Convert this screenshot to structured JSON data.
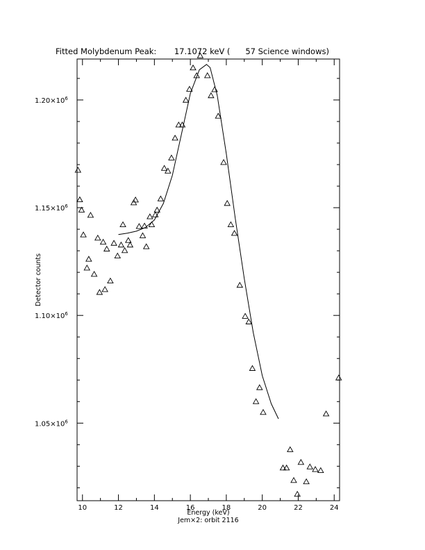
{
  "chart_data": {
    "type": "scatter",
    "title": "Fitted Molybdenum Peak:       17.1072 keV (      57 Science windows)",
    "xlabel": "Energy (keV)",
    "ylabel": "Detector counts",
    "subcaption": "Jem×2: orbit 2116",
    "xlim": [
      9.7,
      24.3
    ],
    "ylim": [
      1014000,
      1219000
    ],
    "x_ticks": [
      10,
      12,
      14,
      16,
      18,
      20,
      22,
      24
    ],
    "x_tick_labels": [
      "10",
      "12",
      "14",
      "16",
      "18",
      "20",
      "22",
      "24"
    ],
    "y_ticks": [
      1050000,
      1100000,
      1150000,
      1200000
    ],
    "y_tick_labels": [
      {
        "mant": "1.05×10",
        "exp": "6"
      },
      {
        "mant": "1.10×10",
        "exp": "6"
      },
      {
        "mant": "1.15×10",
        "exp": "6"
      },
      {
        "mant": "1.20×10",
        "exp": "6"
      }
    ],
    "grid": false,
    "series": [
      {
        "marker": "triangle",
        "points": [
          [
            9.75,
            1167400
          ],
          [
            9.85,
            1153700
          ],
          [
            9.95,
            1148900
          ],
          [
            10.05,
            1137400
          ],
          [
            10.25,
            1122000
          ],
          [
            10.35,
            1126100
          ],
          [
            10.45,
            1146500
          ],
          [
            10.65,
            1119100
          ],
          [
            10.85,
            1135900
          ],
          [
            10.95,
            1110700
          ],
          [
            11.15,
            1134000
          ],
          [
            11.25,
            1112000
          ],
          [
            11.35,
            1130800
          ],
          [
            11.55,
            1116000
          ],
          [
            11.75,
            1133500
          ],
          [
            11.95,
            1127600
          ],
          [
            12.15,
            1132700
          ],
          [
            12.25,
            1142100
          ],
          [
            12.35,
            1130100
          ],
          [
            12.55,
            1134800
          ],
          [
            12.65,
            1132700
          ],
          [
            12.85,
            1152300
          ],
          [
            12.95,
            1153600
          ],
          [
            13.15,
            1141300
          ],
          [
            13.35,
            1137000
          ],
          [
            13.45,
            1141500
          ],
          [
            13.55,
            1131900
          ],
          [
            13.75,
            1145800
          ],
          [
            13.85,
            1142100
          ],
          [
            14.05,
            1146700
          ],
          [
            14.15,
            1148900
          ],
          [
            14.35,
            1154100
          ],
          [
            14.55,
            1168300
          ],
          [
            14.75,
            1167000
          ],
          [
            14.95,
            1173100
          ],
          [
            15.15,
            1182300
          ],
          [
            15.35,
            1188400
          ],
          [
            15.55,
            1188400
          ],
          [
            15.75,
            1199900
          ],
          [
            15.95,
            1205000
          ],
          [
            16.15,
            1214900
          ],
          [
            16.35,
            1211300
          ],
          [
            16.55,
            1220500
          ],
          [
            16.95,
            1211300
          ],
          [
            17.15,
            1202000
          ],
          [
            17.35,
            1204800
          ],
          [
            17.55,
            1192500
          ],
          [
            17.85,
            1171000
          ],
          [
            18.05,
            1152000
          ],
          [
            18.25,
            1142100
          ],
          [
            18.45,
            1138100
          ],
          [
            18.75,
            1114000
          ],
          [
            19.05,
            1099600
          ],
          [
            19.25,
            1097000
          ],
          [
            19.45,
            1075400
          ],
          [
            19.65,
            1060000
          ],
          [
            19.85,
            1066500
          ],
          [
            20.05,
            1055000
          ],
          [
            21.15,
            1029200
          ],
          [
            21.35,
            1029200
          ],
          [
            21.55,
            1037700
          ],
          [
            21.75,
            1023400
          ],
          [
            21.95,
            1017000
          ],
          [
            22.15,
            1031800
          ],
          [
            22.45,
            1022800
          ],
          [
            22.65,
            1029700
          ],
          [
            22.95,
            1028500
          ],
          [
            23.25,
            1028000
          ],
          [
            23.55,
            1054300
          ],
          [
            24.25,
            1071000
          ]
        ]
      },
      {
        "name": "fit",
        "style": "line",
        "points": [
          [
            12.0,
            1137500
          ],
          [
            12.5,
            1138200
          ],
          [
            13.0,
            1139100
          ],
          [
            13.5,
            1140800
          ],
          [
            14.0,
            1144300
          ],
          [
            14.5,
            1152000
          ],
          [
            15.0,
            1165000
          ],
          [
            15.5,
            1184000
          ],
          [
            16.0,
            1203000
          ],
          [
            16.5,
            1214000
          ],
          [
            16.9,
            1216500
          ],
          [
            17.1,
            1215000
          ],
          [
            17.5,
            1202000
          ],
          [
            18.0,
            1175000
          ],
          [
            18.5,
            1145000
          ],
          [
            19.0,
            1117000
          ],
          [
            19.5,
            1092000
          ],
          [
            20.0,
            1072000
          ],
          [
            20.5,
            1059000
          ],
          [
            20.9,
            1052000
          ]
        ]
      }
    ]
  }
}
